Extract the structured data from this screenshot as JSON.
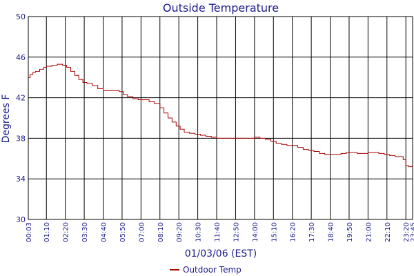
{
  "chart_data": {
    "type": "line",
    "title": "Outside Temperature",
    "xlabel": "01/03/06 (EST)",
    "ylabel": "Degrees F",
    "ylim": [
      30,
      50
    ],
    "yticks": [
      30,
      34,
      38,
      42,
      46,
      50
    ],
    "grid": true,
    "legend_position": "bottom",
    "x_domain": [
      "00:03",
      "23:45"
    ],
    "xticks": [
      "00:03",
      "01:10",
      "02:20",
      "03:30",
      "04:40",
      "05:50",
      "07:00",
      "08:10",
      "09:20",
      "10:30",
      "11:40",
      "12:50",
      "14:00",
      "15:10",
      "16:20",
      "17:30",
      "18:40",
      "19:50",
      "21:00",
      "22:10",
      "23:20",
      "23:45"
    ],
    "colors": {
      "line": "#aa0000",
      "text": "#1a1a8c",
      "grid": "#000000"
    },
    "series": [
      {
        "name": "Outdoor Temp",
        "x": [
          "00:03",
          "00:10",
          "00:20",
          "00:30",
          "00:45",
          "01:00",
          "01:10",
          "01:30",
          "01:50",
          "02:10",
          "02:25",
          "02:40",
          "02:55",
          "03:10",
          "03:25",
          "03:40",
          "04:00",
          "04:20",
          "04:40",
          "05:00",
          "05:20",
          "05:40",
          "05:55",
          "06:10",
          "06:30",
          "06:50",
          "07:10",
          "07:30",
          "07:50",
          "08:10",
          "08:25",
          "08:40",
          "08:55",
          "09:10",
          "09:25",
          "09:40",
          "10:00",
          "10:20",
          "10:40",
          "11:00",
          "11:20",
          "11:40",
          "12:00",
          "12:20",
          "12:40",
          "13:00",
          "13:20",
          "13:40",
          "14:00",
          "14:20",
          "14:40",
          "15:00",
          "15:20",
          "15:40",
          "16:00",
          "16:20",
          "16:40",
          "17:00",
          "17:20",
          "17:40",
          "18:00",
          "18:20",
          "18:40",
          "19:00",
          "19:20",
          "19:40",
          "20:00",
          "20:20",
          "20:40",
          "21:00",
          "21:20",
          "21:40",
          "22:00",
          "22:20",
          "22:40",
          "23:00",
          "23:10",
          "23:20",
          "23:30",
          "23:45"
        ],
        "values": [
          44.0,
          44.3,
          44.5,
          44.6,
          44.8,
          45.0,
          45.1,
          45.2,
          45.3,
          45.2,
          45.0,
          44.6,
          44.2,
          43.8,
          43.5,
          43.4,
          43.2,
          42.9,
          42.7,
          42.7,
          42.7,
          42.6,
          42.3,
          42.1,
          41.9,
          41.8,
          41.8,
          41.6,
          41.4,
          41.0,
          40.5,
          40.0,
          39.6,
          39.2,
          38.9,
          38.6,
          38.5,
          38.4,
          38.3,
          38.2,
          38.1,
          38.0,
          38.0,
          38.0,
          38.0,
          38.0,
          38.0,
          38.0,
          38.1,
          38.0,
          37.9,
          37.7,
          37.5,
          37.4,
          37.3,
          37.3,
          37.1,
          36.9,
          36.8,
          36.7,
          36.5,
          36.4,
          36.4,
          36.4,
          36.5,
          36.6,
          36.6,
          36.5,
          36.5,
          36.6,
          36.6,
          36.5,
          36.4,
          36.3,
          36.2,
          36.2,
          35.9,
          35.3,
          35.2,
          35.2
        ]
      }
    ]
  }
}
